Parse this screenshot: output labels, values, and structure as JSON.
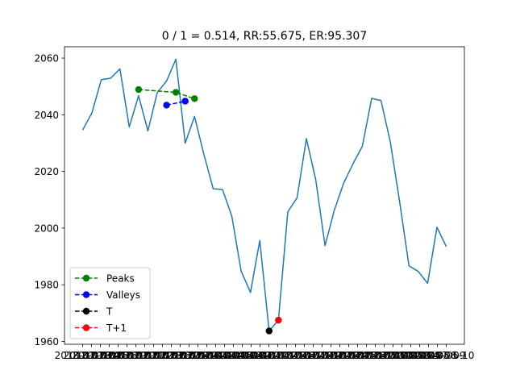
{
  "chart_data": {
    "type": "line",
    "title": "0 / 1 = 0.514, RR:55.675, ER:95.307",
    "xlabel": "",
    "ylabel": "",
    "ylim": [
      1959,
      2064
    ],
    "yticks": [
      1960,
      1980,
      2000,
      2020,
      2040,
      2060
    ],
    "x_tick_text": [
      "2018-03-13",
      "2018-03-14",
      "2018-03-15",
      "2018-03-16",
      "2018-03-19",
      "2018-03-20",
      "2018-03-21",
      "2018-03-22",
      "2018-03-23",
      "2018-03-26",
      "2018-03-27",
      "2018-03-28",
      "2018-03-29",
      "2018-04-02",
      "2018-04-03",
      "2018-04-04",
      "2018-04-05",
      "2018-04-06",
      "2018-04-09",
      "2018-04-10",
      "2018-04-11",
      "2018-04-12",
      "2018-04-13",
      "2018-04-16",
      "2018-04-17",
      "2018-04-18",
      "2018-04-19",
      "2018-04-20",
      "2018-04-23",
      "2018-04-24",
      "2018-04-25",
      "2018-04-26",
      "2018-04-27",
      "2018-04-30",
      "2018-05-01",
      "2018-05-02",
      "2018-05-03",
      "2018-05-04",
      "2018-05-07",
      "2018-05-08",
      "2018-05-09",
      "2018-05-10"
    ],
    "series": [
      {
        "name": "Price",
        "color": "#1f77b4",
        "x": [
          0,
          1,
          2,
          3,
          4,
          5,
          6,
          7,
          8,
          9,
          10,
          11,
          12,
          13,
          14,
          15,
          16,
          17,
          18,
          19,
          20,
          21,
          22,
          23,
          24,
          25,
          26,
          27,
          28,
          29,
          30,
          31,
          32,
          33,
          34,
          35,
          36,
          37,
          38,
          39
        ],
        "values": [
          2034.6,
          2040.7,
          2052.4,
          2052.9,
          2056.2,
          2035.7,
          2046.7,
          2034.3,
          2047.8,
          2051.9,
          2059.6,
          2030.0,
          2039.4,
          2026.1,
          2013.9,
          2013.6,
          2004.2,
          1984.8,
          1977.3,
          1995.6,
          1963.7,
          1967.5,
          2005.7,
          2010.7,
          2031.6,
          2017.1,
          1993.8,
          2006.4,
          2015.9,
          2022.7,
          2028.9,
          2045.8,
          2045.0,
          2030.4,
          2009.3,
          1986.7,
          1984.7,
          1980.5,
          2000.3,
          1993.5
        ]
      },
      {
        "name": "Peaks",
        "color": "#008000",
        "style": "dashed-marker",
        "x": [
          6,
          10,
          12
        ],
        "values": [
          2048.9,
          2047.9,
          2045.7
        ]
      },
      {
        "name": "Valleys",
        "color": "#0000ff",
        "style": "dashed-marker",
        "x": [
          9,
          11
        ],
        "values": [
          2043.4,
          2044.8
        ]
      },
      {
        "name": "T",
        "color": "#000000",
        "style": "marker",
        "x": [
          20
        ],
        "values": [
          1963.7
        ]
      },
      {
        "name": "T+1",
        "color": "#ff0000",
        "style": "marker",
        "x": [
          21
        ],
        "values": [
          1967.5
        ]
      }
    ],
    "legend": {
      "position": "lower-left",
      "entries": [
        {
          "label": "Peaks",
          "color": "#008000"
        },
        {
          "label": "Valleys",
          "color": "#0000ff"
        },
        {
          "label": "T",
          "color": "#000000"
        },
        {
          "label": "T+1",
          "color": "#ff0000"
        }
      ]
    }
  }
}
